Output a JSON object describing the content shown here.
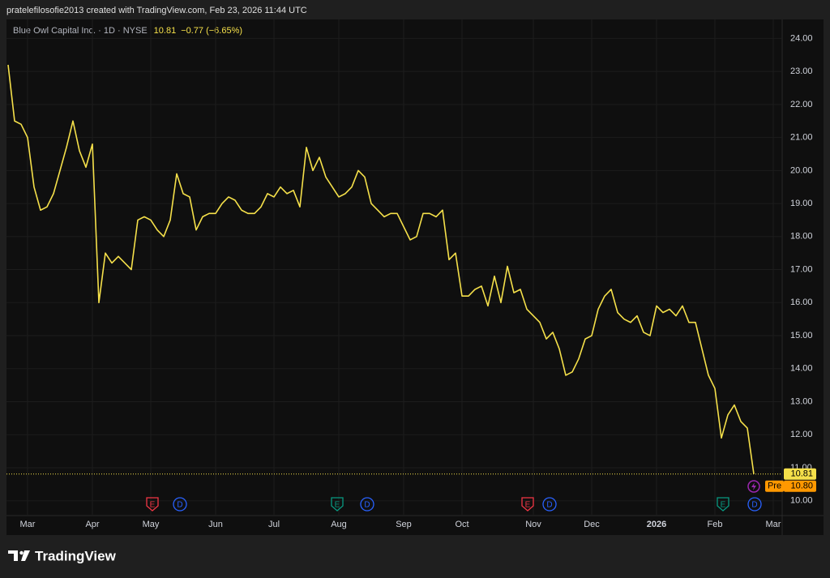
{
  "credit": "pratelefilosofie2013 created with TradingView.com, Feb 23, 2026 11:44 UTC",
  "brand": "TradingView",
  "chart_data": {
    "type": "line",
    "title": "Blue Owl Capital Inc. · 1D · NYSE",
    "price": 10.81,
    "change": "−0.77 (−6.65%)",
    "pre_label": "Pre",
    "pre_price": {
      "value": 10.8,
      "label": "10.80"
    },
    "categories": [
      null,
      null,
      null,
      "Mar",
      null,
      null,
      null,
      null,
      null,
      null,
      null,
      null,
      null,
      "Apr",
      null,
      null,
      null,
      null,
      null,
      null,
      null,
      null,
      "May",
      null,
      null,
      null,
      null,
      null,
      null,
      null,
      null,
      null,
      "Jun",
      null,
      null,
      null,
      null,
      null,
      null,
      null,
      null,
      "Jul",
      null,
      null,
      null,
      null,
      null,
      null,
      null,
      null,
      null,
      "Aug",
      null,
      null,
      null,
      null,
      null,
      null,
      null,
      null,
      null,
      "Sep",
      null,
      null,
      null,
      null,
      null,
      null,
      null,
      null,
      "Oct",
      null,
      null,
      null,
      null,
      null,
      null,
      null,
      null,
      null,
      null,
      "Nov",
      null,
      null,
      null,
      null,
      null,
      null,
      null,
      null,
      "Dec",
      null,
      null,
      null,
      null,
      null,
      null,
      null,
      null,
      null,
      "2026",
      null,
      null,
      null,
      null,
      null,
      null,
      null,
      null,
      "Feb",
      null,
      null,
      null,
      null,
      null,
      null,
      null,
      null,
      "Mar"
    ],
    "series": [
      {
        "name": "Blue Owl Capital Inc.",
        "color": "#f5e04a",
        "values": [
          23.2,
          21.5,
          21.4,
          21.0,
          19.5,
          18.8,
          18.9,
          19.3,
          20.0,
          20.7,
          21.5,
          20.6,
          20.1,
          20.8,
          16.0,
          17.5,
          17.2,
          17.4,
          17.2,
          17.0,
          18.5,
          18.6,
          18.5,
          18.2,
          18.0,
          18.5,
          19.9,
          19.3,
          19.2,
          18.2,
          18.6,
          18.7,
          18.7,
          19.0,
          19.2,
          19.1,
          18.8,
          18.7,
          18.7,
          18.9,
          19.3,
          19.2,
          19.5,
          19.3,
          19.4,
          18.9,
          20.7,
          20.0,
          20.4,
          19.8,
          19.5,
          19.2,
          19.3,
          19.5,
          20.0,
          19.8,
          19.0,
          18.8,
          18.6,
          18.7,
          18.7,
          18.3,
          17.9,
          18.0,
          18.7,
          18.7,
          18.6,
          18.8,
          17.3,
          17.5,
          16.2,
          16.2,
          16.4,
          16.5,
          15.9,
          16.8,
          16.0,
          17.1,
          16.3,
          16.4,
          15.8,
          15.6,
          15.4,
          14.9,
          15.1,
          14.6,
          13.8,
          13.9,
          14.3,
          14.9,
          15.0,
          15.8,
          16.2,
          16.4,
          15.7,
          15.5,
          15.4,
          15.6,
          15.1,
          15.0,
          15.9,
          15.7,
          15.8,
          15.6,
          15.9,
          15.4,
          15.4,
          14.6,
          13.8,
          13.4,
          11.9,
          12.6,
          12.9,
          12.4,
          12.2,
          10.81,
          null,
          null,
          null
        ]
      }
    ],
    "ylim": [
      9.6,
      24.55
    ],
    "yticks": [
      {
        "value": 10,
        "label": "10.00"
      },
      {
        "value": 11,
        "label": "11.00"
      },
      {
        "value": 12,
        "label": "12.00"
      },
      {
        "value": 13,
        "label": "13.00"
      },
      {
        "value": 14,
        "label": "14.00"
      },
      {
        "value": 15,
        "label": "15.00"
      },
      {
        "value": 16,
        "label": "16.00"
      },
      {
        "value": 17,
        "label": "17.00"
      },
      {
        "value": 18,
        "label": "18.00"
      },
      {
        "value": 19,
        "label": "19.00"
      },
      {
        "value": 20,
        "label": "20.00"
      },
      {
        "value": 21,
        "label": "21.00"
      },
      {
        "value": 22,
        "label": "22.00"
      },
      {
        "value": 23,
        "label": "23.00"
      },
      {
        "value": 24,
        "label": "24.00"
      }
    ],
    "grid": true,
    "events": [
      {
        "label": "E",
        "color": "#f23645"
      },
      {
        "label": "D",
        "color": "#2962ff"
      },
      {
        "label": "E",
        "color": "#089981"
      },
      {
        "label": "D",
        "color": "#2962ff"
      },
      {
        "label": "E",
        "color": "#f23645"
      },
      {
        "label": "D",
        "color": "#2962ff"
      },
      {
        "label": "E",
        "color": "#089981"
      },
      {
        "label": "D",
        "color": "#2962ff"
      }
    ]
  }
}
